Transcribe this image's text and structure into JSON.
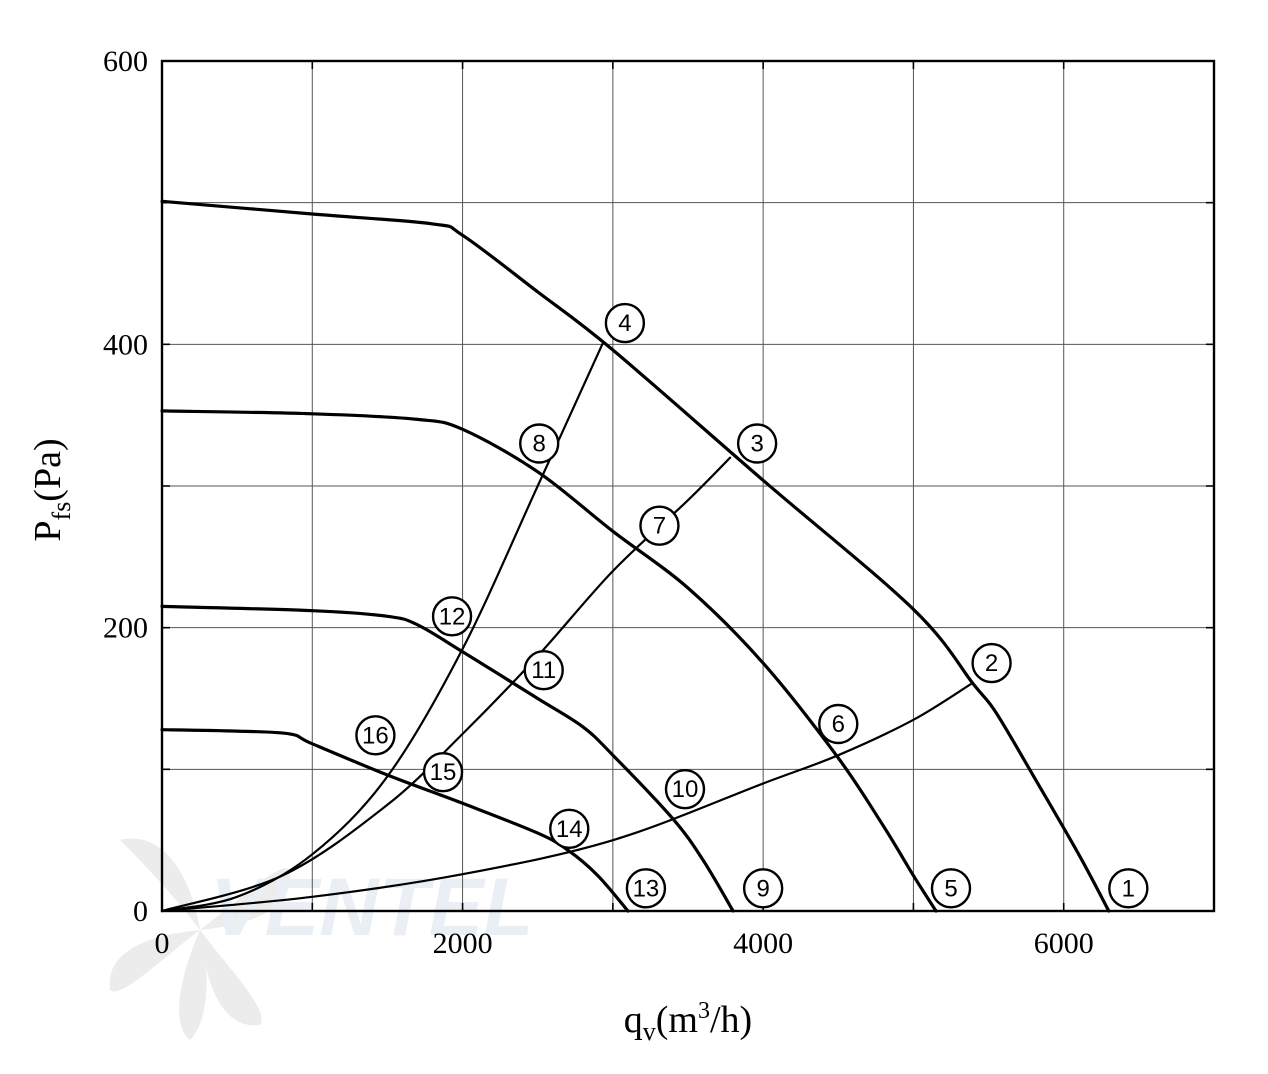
{
  "chart_data": {
    "type": "line",
    "xlabel": "q",
    "xlabel_sub": "v",
    "xlabel_unit": "(m",
    "xlabel_sup": "3",
    "xlabel_unit_end": "/h)",
    "ylabel": "P",
    "ylabel_sub": "fs",
    "ylabel_unit": "(Pa)",
    "xlim": [
      0,
      7000
    ],
    "ylim": [
      0,
      600
    ],
    "xticks": [
      0,
      2000,
      4000,
      6000
    ],
    "yticks": [
      0,
      200,
      400,
      600
    ],
    "grid": true,
    "x_grid_step": 1000,
    "y_grid_step": 100,
    "watermark": "VENTEL",
    "fan_curves": [
      {
        "name": "1",
        "points": [
          [
            0,
            501
          ],
          [
            1000,
            492
          ],
          [
            1800,
            485
          ],
          [
            2000,
            477
          ],
          [
            2500,
            437
          ],
          [
            3000,
            396
          ],
          [
            4000,
            304
          ],
          [
            5000,
            213
          ],
          [
            5400,
            160
          ],
          [
            5550,
            140
          ],
          [
            5800,
            95
          ],
          [
            6100,
            40
          ],
          [
            6300,
            0
          ]
        ]
      },
      {
        "name": "5",
        "points": [
          [
            0,
            353
          ],
          [
            1000,
            351
          ],
          [
            1700,
            347
          ],
          [
            2000,
            340
          ],
          [
            2500,
            310
          ],
          [
            3000,
            268
          ],
          [
            3500,
            228
          ],
          [
            4000,
            175
          ],
          [
            4500,
            108
          ],
          [
            4800,
            60
          ],
          [
            5000,
            25
          ],
          [
            5150,
            0
          ]
        ]
      },
      {
        "name": "9",
        "points": [
          [
            0,
            215
          ],
          [
            1000,
            212
          ],
          [
            1500,
            208
          ],
          [
            1700,
            202
          ],
          [
            2000,
            183
          ],
          [
            2500,
            150
          ],
          [
            2800,
            130
          ],
          [
            3000,
            110
          ],
          [
            3400,
            65
          ],
          [
            3600,
            36
          ],
          [
            3800,
            0
          ]
        ]
      },
      {
        "name": "13",
        "points": [
          [
            0,
            128
          ],
          [
            500,
            127
          ],
          [
            850,
            125
          ],
          [
            1000,
            118
          ],
          [
            1500,
            96
          ],
          [
            2000,
            76
          ],
          [
            2500,
            55
          ],
          [
            2700,
            43
          ],
          [
            2900,
            25
          ],
          [
            3100,
            0
          ]
        ]
      }
    ],
    "system_curves": [
      {
        "name": "4",
        "points": [
          [
            0,
            0
          ],
          [
            500,
            10
          ],
          [
            1000,
            40
          ],
          [
            1500,
            95
          ],
          [
            2000,
            185
          ],
          [
            2500,
            300
          ],
          [
            2930,
            400
          ]
        ]
      },
      {
        "name": "3",
        "points": [
          [
            0,
            0
          ],
          [
            800,
            25
          ],
          [
            1500,
            75
          ],
          [
            2000,
            125
          ],
          [
            2500,
            180
          ],
          [
            3000,
            240
          ],
          [
            3500,
            290
          ],
          [
            3780,
            320
          ]
        ]
      },
      {
        "name": "2",
        "points": [
          [
            0,
            0
          ],
          [
            1000,
            10
          ],
          [
            2000,
            26
          ],
          [
            3000,
            50
          ],
          [
            4000,
            90
          ],
          [
            4500,
            110
          ],
          [
            5000,
            135
          ],
          [
            5380,
            160
          ]
        ]
      }
    ],
    "markers": [
      {
        "label": "1",
        "x": 6430,
        "y": 16
      },
      {
        "label": "2",
        "x": 5520,
        "y": 175
      },
      {
        "label": "3",
        "x": 3960,
        "y": 330
      },
      {
        "label": "4",
        "x": 3080,
        "y": 415
      },
      {
        "label": "5",
        "x": 5250,
        "y": 16
      },
      {
        "label": "6",
        "x": 4500,
        "y": 132
      },
      {
        "label": "7",
        "x": 3310,
        "y": 272
      },
      {
        "label": "8",
        "x": 2510,
        "y": 330
      },
      {
        "label": "9",
        "x": 4000,
        "y": 16
      },
      {
        "label": "10",
        "x": 3480,
        "y": 86
      },
      {
        "label": "11",
        "x": 2540,
        "y": 170
      },
      {
        "label": "12",
        "x": 1930,
        "y": 208
      },
      {
        "label": "13",
        "x": 3220,
        "y": 16
      },
      {
        "label": "14",
        "x": 2710,
        "y": 58
      },
      {
        "label": "15",
        "x": 1870,
        "y": 98
      },
      {
        "label": "16",
        "x": 1420,
        "y": 124
      }
    ]
  }
}
